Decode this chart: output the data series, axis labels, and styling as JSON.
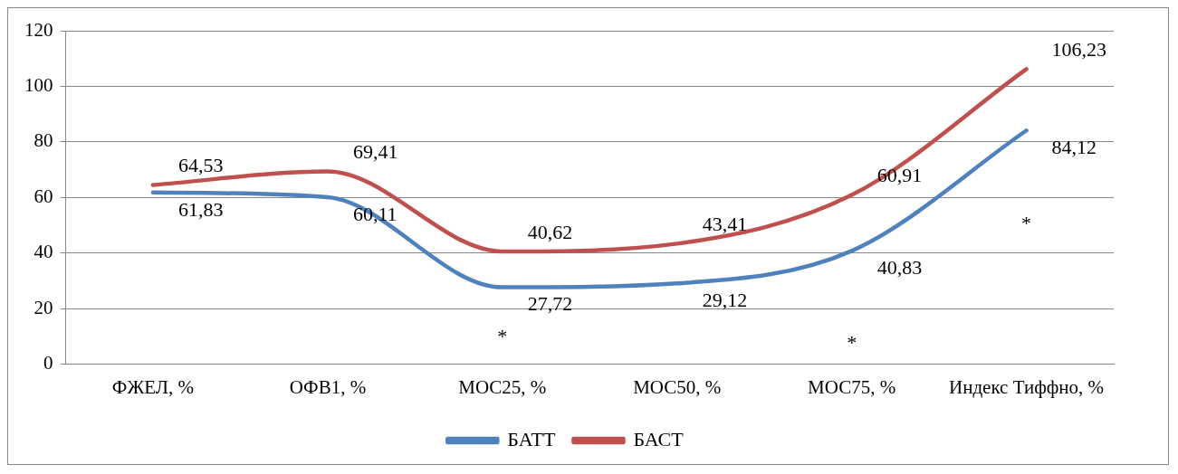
{
  "chart_data": {
    "type": "line",
    "categories": [
      "ФЖЕЛ, %",
      "ОФВ1, %",
      "МОС25, %",
      "МОС50, %",
      "МОС75, %",
      "Индекс Тиффно, %"
    ],
    "series": [
      {
        "name": "БАТТ",
        "color": "#4f81bd",
        "values": [
          61.83,
          60.11,
          27.72,
          29.12,
          40.83,
          84.12
        ],
        "value_labels": [
          "61,83",
          "60,11",
          "27,72",
          "29,12",
          "40,83",
          "84,12"
        ]
      },
      {
        "name": "БАСТ",
        "color": "#c0504d",
        "values": [
          64.53,
          69.41,
          40.62,
          43.41,
          60.91,
          106.23
        ],
        "value_labels": [
          "64,53",
          "69,41",
          "40,62",
          "43,41",
          "60,91",
          "106,23"
        ]
      }
    ],
    "ylim": [
      0,
      120
    ],
    "yticks": [
      0,
      20,
      40,
      60,
      80,
      100,
      120
    ],
    "grid": "y",
    "legend": "bottom",
    "marker": "none",
    "line_style": "solid",
    "annotations": [
      "*",
      "*",
      "*"
    ]
  }
}
